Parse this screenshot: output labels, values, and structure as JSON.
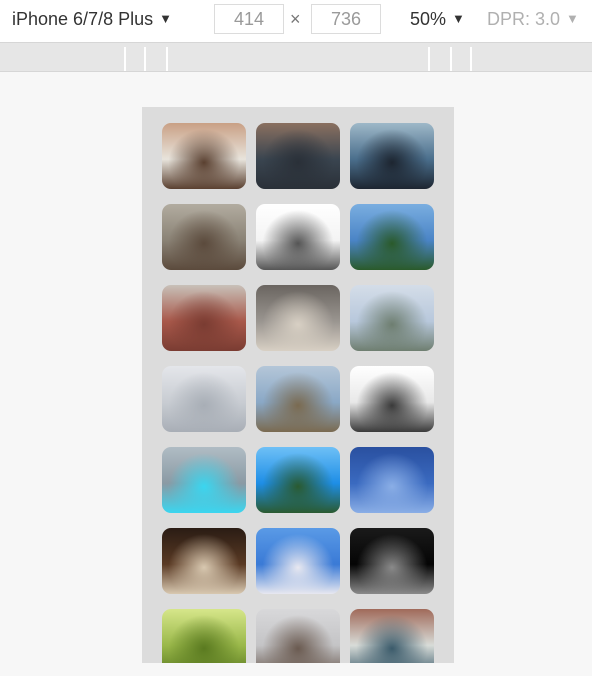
{
  "toolbar": {
    "device": "iPhone 6/7/8 Plus",
    "width": "414",
    "height": "736",
    "times": "×",
    "zoom": "50%",
    "dpr": "DPR: 3.0",
    "arrow": "▼"
  },
  "thumbnails": [
    {
      "subject": "woman-face",
      "colors": [
        "#e8e4dc",
        "#5a4030",
        "#c9a085"
      ]
    },
    {
      "subject": "person-sitting-jeans",
      "colors": [
        "#3a4550",
        "#2a3038",
        "#8a7060"
      ]
    },
    {
      "subject": "legs-at-beach",
      "colors": [
        "#4a6e8c",
        "#1d2530",
        "#9eb8c8"
      ]
    },
    {
      "subject": "hillside-village",
      "colors": [
        "#8a8275",
        "#5b4a3c",
        "#b2aca0"
      ]
    },
    {
      "subject": "paper-form",
      "colors": [
        "#f4f4f4",
        "#555555",
        "#ffffff"
      ]
    },
    {
      "subject": "tree-blue-sky",
      "colors": [
        "#4a84c6",
        "#2a5a2a",
        "#7aaee0"
      ]
    },
    {
      "subject": "brick-wall",
      "colors": [
        "#a8584a",
        "#7a3c32",
        "#c8c0b8"
      ]
    },
    {
      "subject": "ceiling-railing",
      "colors": [
        "#9a9590",
        "#d8d0c4",
        "#6a6560"
      ]
    },
    {
      "subject": "bridge-arch",
      "colors": [
        "#b8c8dc",
        "#6e7e70",
        "#d4dde8"
      ]
    },
    {
      "subject": "cloudy-sky",
      "colors": [
        "#c8ccd2",
        "#a8aeb6",
        "#e4e6ea"
      ]
    },
    {
      "subject": "tree-branches-sky",
      "colors": [
        "#8aa8c6",
        "#7a6a50",
        "#b4c6d8"
      ]
    },
    {
      "subject": "bare-tree-bw",
      "colors": [
        "#e8e8e8",
        "#3a3a3a",
        "#ffffff"
      ]
    },
    {
      "subject": "glowing-sculpture",
      "colors": [
        "#8a9aa4",
        "#3ad6f0",
        "#b0bcc4"
      ]
    },
    {
      "subject": "bright-sky-trees",
      "colors": [
        "#1e8ee6",
        "#2a5a30",
        "#6ec0f6"
      ]
    },
    {
      "subject": "blue-sky-streaks",
      "colors": [
        "#3a6ac0",
        "#8aaee6",
        "#2a50a0"
      ]
    },
    {
      "subject": "market-stall-night",
      "colors": [
        "#5a3a24",
        "#d8c8b0",
        "#2a1c14"
      ]
    },
    {
      "subject": "blue-sky-tower",
      "colors": [
        "#3a7ad6",
        "#e8e8f0",
        "#5a9ae6"
      ]
    },
    {
      "subject": "dark-silhouette",
      "colors": [
        "#050505",
        "#8a8a8a",
        "#1a1a1a"
      ]
    },
    {
      "subject": "green-curtains",
      "colors": [
        "#9ab84a",
        "#5a7a20",
        "#d6e68a"
      ]
    },
    {
      "subject": "gray-sky-building",
      "colors": [
        "#c4c4c6",
        "#6a5a50",
        "#d8d8da"
      ]
    },
    {
      "subject": "person-at-shelf",
      "colors": [
        "#d8dcd8",
        "#3a5a6a",
        "#a06a5a"
      ]
    }
  ]
}
